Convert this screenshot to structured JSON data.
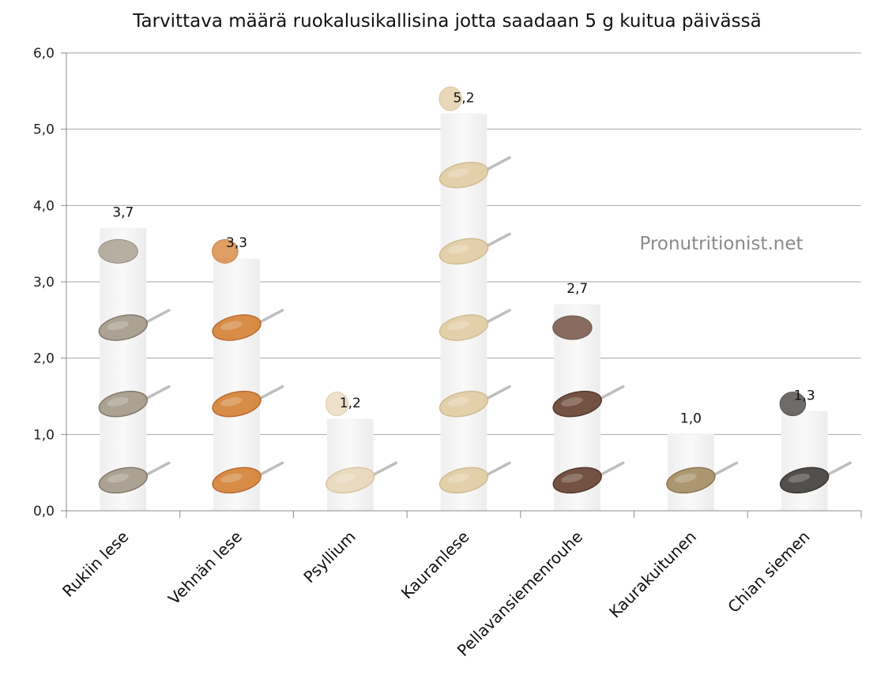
{
  "chart_data": {
    "type": "bar",
    "title": "Tarvittava määrä ruokalusikallisina jotta saadaan 5 g kuitua päivässä",
    "categories": [
      "Rukiin lese",
      "Vehnän lese",
      "Psyllium",
      "Kauranlese",
      "Pellavansiemenrouhe",
      "Kaurakuitunen",
      "Chian siemen"
    ],
    "values": [
      3.7,
      3.3,
      1.2,
      5.2,
      2.7,
      1.0,
      1.3
    ],
    "value_labels": [
      "3,7",
      "3,3",
      "1,2",
      "5,2",
      "2,7",
      "1,0",
      "1,3"
    ],
    "ylim": [
      0,
      6
    ],
    "y_ticks": [
      "0,0",
      "1,0",
      "2,0",
      "3,0",
      "4,0",
      "5,0",
      "6,0"
    ],
    "xlabel": "",
    "ylabel": "",
    "grid": true,
    "legend": "none",
    "spoon_colors": [
      "#a89e8e",
      "#d6873e",
      "#ead9bd",
      "#e3cfa8",
      "#6e4a3a",
      "#a9926a",
      "#4a4744"
    ],
    "spoon_edge_colors": [
      "#7e7466",
      "#b8652a",
      "#d9c29e",
      "#cfb98f",
      "#4e3026",
      "#86714b",
      "#2f2d2b"
    ]
  },
  "watermark": "Pronutritionist.net"
}
